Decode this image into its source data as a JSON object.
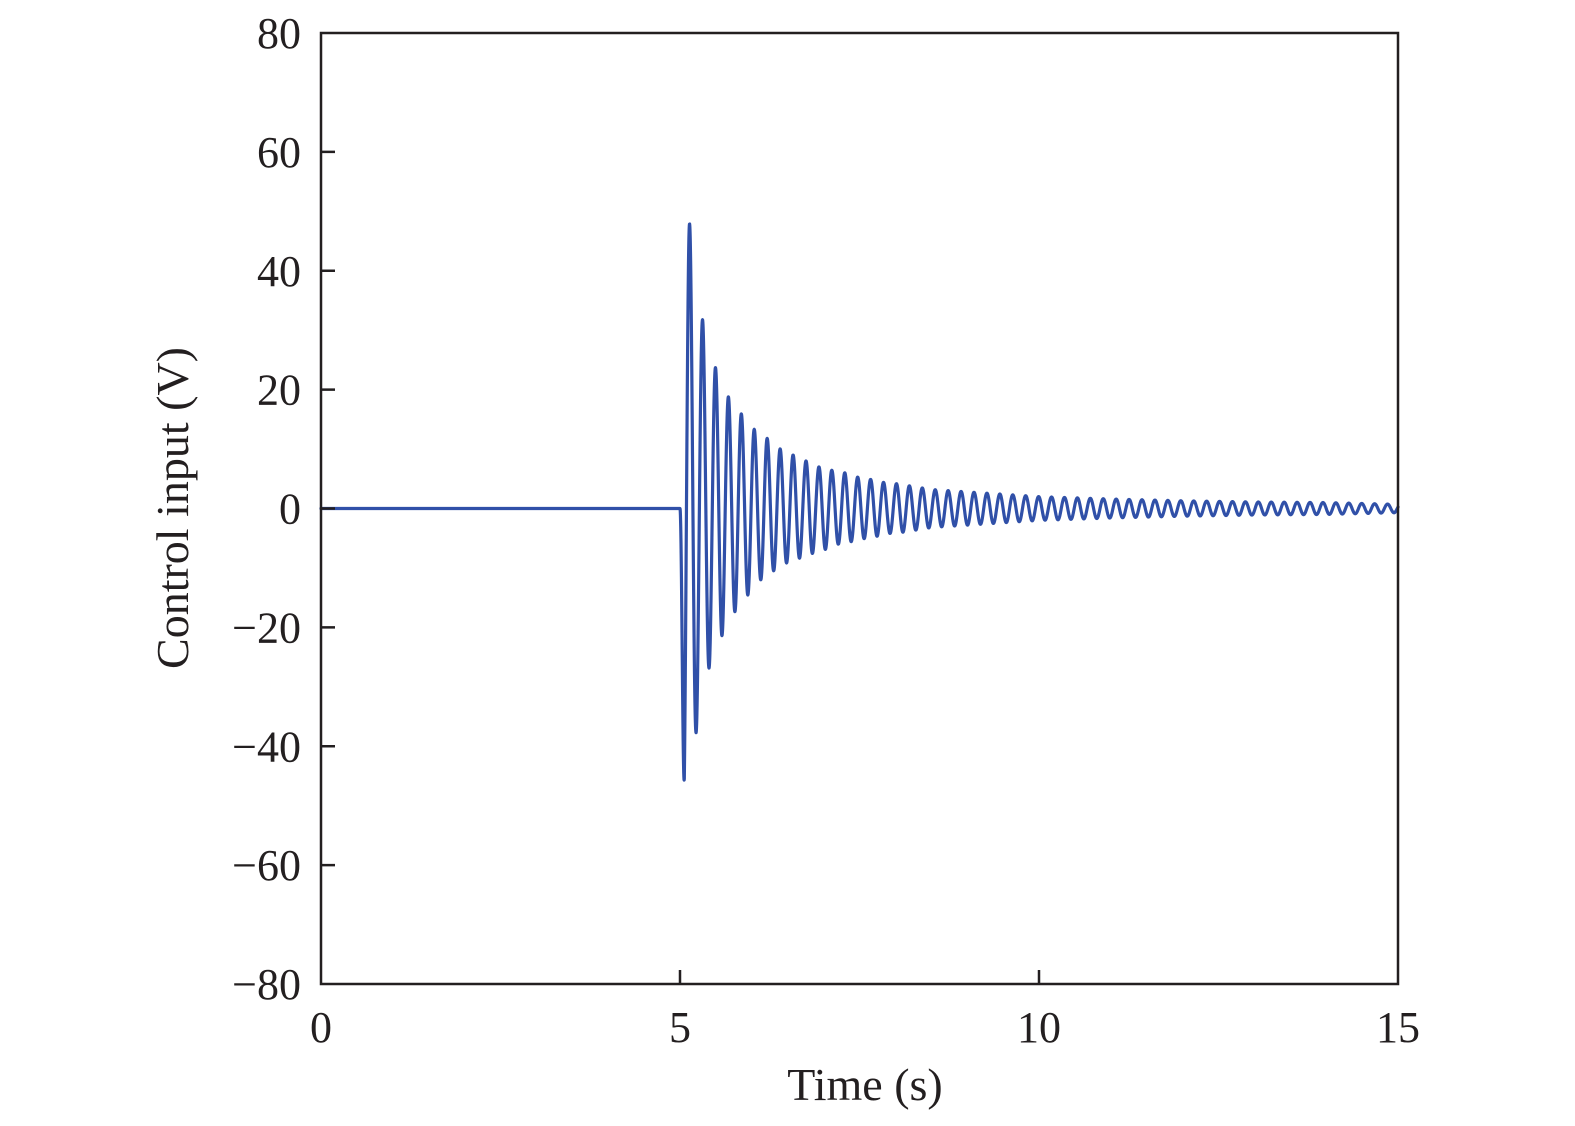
{
  "chart_data": {
    "type": "line",
    "xlabel": "Time (s)",
    "ylabel": "Control input (V)",
    "xlim": [
      0,
      15
    ],
    "ylim": [
      -80,
      80
    ],
    "xticks": [
      0,
      5,
      10,
      15
    ],
    "xtick_labels": [
      "0",
      "5",
      "10",
      "15"
    ],
    "yticks": [
      80,
      60,
      40,
      20,
      0,
      -20,
      -40,
      -60,
      -80
    ],
    "ytick_labels": [
      "80",
      "60",
      "40",
      "20",
      "0",
      "−20",
      "−40",
      "−60",
      "−80"
    ],
    "grid": false,
    "legend": "none",
    "color": "#3050a8",
    "series": [
      {
        "description_points": [
          [
            0,
            0
          ],
          [
            5.0,
            0
          ],
          [
            5.03,
            -54
          ],
          [
            5.12,
            49.5
          ],
          [
            5.22,
            -38
          ],
          [
            5.31,
            32
          ],
          [
            5.4,
            -27
          ],
          [
            5.5,
            23.5
          ],
          [
            5.6,
            -21
          ],
          [
            5.7,
            18
          ],
          [
            5.8,
            -17
          ],
          [
            5.9,
            15
          ],
          [
            6.0,
            -14
          ],
          [
            6.1,
            12
          ],
          [
            6.2,
            -12
          ],
          [
            6.3,
            10.5
          ],
          [
            6.4,
            -10
          ],
          [
            6.5,
            9
          ],
          [
            6.6,
            -9
          ],
          [
            6.7,
            8
          ],
          [
            6.8,
            -8
          ],
          [
            6.9,
            7
          ],
          [
            7.0,
            -7
          ],
          [
            7.1,
            6.5
          ],
          [
            7.2,
            -6
          ],
          [
            7.3,
            6
          ],
          [
            7.4,
            -5.5
          ],
          [
            7.5,
            5.2
          ],
          [
            7.6,
            -5
          ],
          [
            7.7,
            4.8
          ],
          [
            7.8,
            -4.5
          ],
          [
            7.9,
            4.2
          ],
          [
            8.0,
            -4.2
          ],
          [
            8.5,
            3.2
          ],
          [
            9.0,
            -2.8
          ],
          [
            9.5,
            2.4
          ],
          [
            10.0,
            -2.0
          ],
          [
            11.0,
            1.6
          ],
          [
            12.0,
            -1.3
          ],
          [
            13.0,
            1.1
          ],
          [
            14.0,
            -1.0
          ],
          [
            15.0,
            0.7
          ]
        ],
        "oscillation_period_s": 0.18,
        "onset_time": 5.0,
        "final_value": 0
      }
    ]
  }
}
